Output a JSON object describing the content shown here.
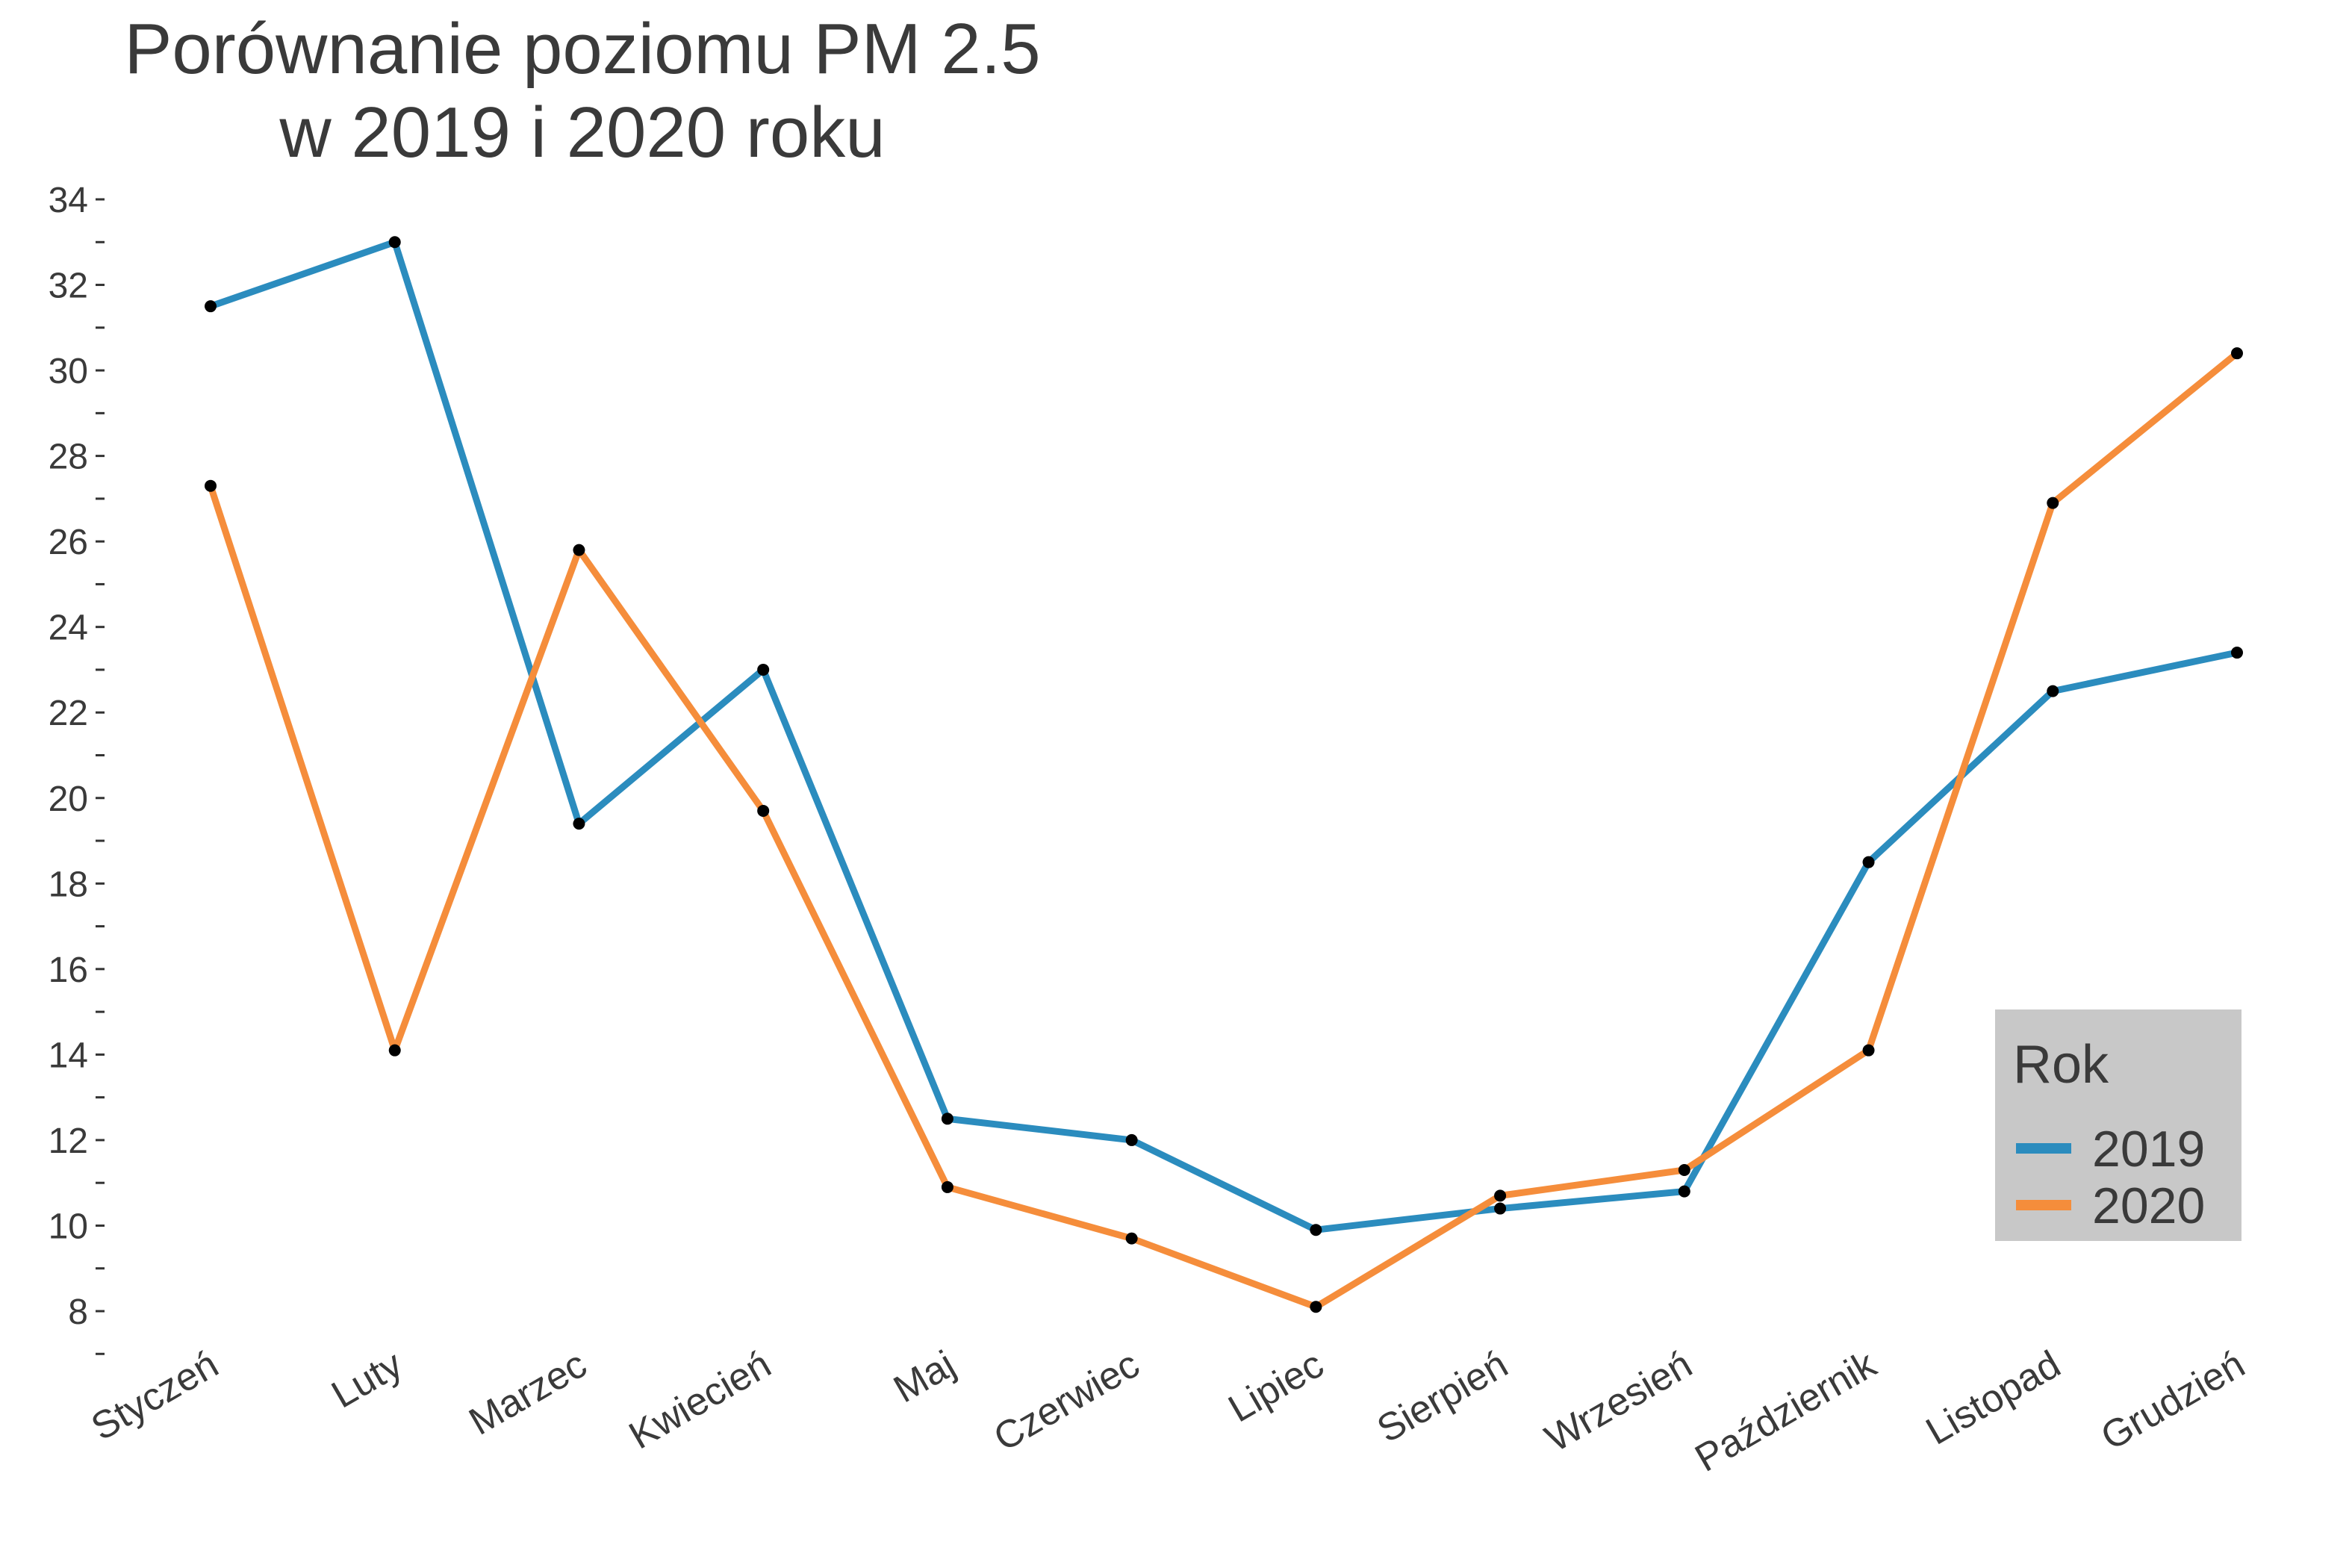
{
  "chart_data": {
    "type": "line",
    "title_lines": [
      "Porównanie poziomu PM 2.5",
      "w 2019 i 2020 roku"
    ],
    "xlabel": "",
    "ylabel": "",
    "categories": [
      "Styczeń",
      "Luty",
      "Marzec",
      "Kwiecień",
      "Maj",
      "Czerwiec",
      "Lipiec",
      "Sierpień",
      "Wrzesień",
      "Październik",
      "Listopad",
      "Grudzień"
    ],
    "ylim": [
      7,
      34.5
    ],
    "yticks": [
      8,
      10,
      12,
      14,
      16,
      18,
      20,
      22,
      24,
      26,
      28,
      30,
      32,
      34
    ],
    "grid": false,
    "legend": {
      "title": "Rok",
      "placement": "bottom-right",
      "background": "#c8c8c8"
    },
    "point_color": "#000000",
    "series": [
      {
        "name": "2019",
        "color": "#2b8cbe",
        "values": [
          31.5,
          33.0,
          19.4,
          23.0,
          12.5,
          12.0,
          9.9,
          10.4,
          10.8,
          18.5,
          22.5,
          23.4
        ]
      },
      {
        "name": "2020",
        "color": "#f58d3b",
        "values": [
          27.3,
          14.1,
          25.8,
          19.7,
          10.9,
          9.7,
          8.1,
          10.7,
          11.3,
          14.1,
          26.9,
          30.4
        ]
      }
    ]
  }
}
